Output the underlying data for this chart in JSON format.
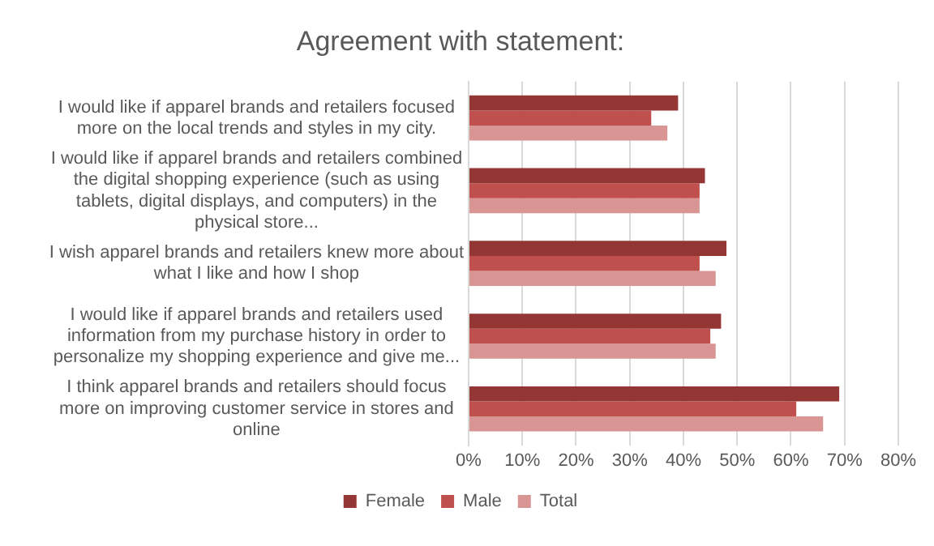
{
  "chart_data": {
    "type": "bar",
    "orientation": "horizontal",
    "title": "Agreement with statement:",
    "categories": [
      "I would like if apparel brands and retailers focused more on the local trends and styles in my city.",
      "I would like if apparel brands and retailers combined the digital shopping experience (such as using tablets, digital displays, and computers) in the physical store...",
      "I wish apparel brands and retailers knew more about what I like and how I shop",
      "I would like if apparel brands and retailers used information from my purchase history in order to personalize my shopping experience and give me...",
      "I think apparel brands and retailers should focus more on improving customer service in stores and online"
    ],
    "series": [
      {
        "name": "Female",
        "color": "#943634",
        "values": [
          39,
          44,
          48,
          47,
          69
        ]
      },
      {
        "name": "Male",
        "color": "#c0504d",
        "values": [
          34,
          43,
          43,
          45,
          61
        ]
      },
      {
        "name": "Total",
        "color": "#d99594",
        "values": [
          37,
          43,
          46,
          46,
          66
        ]
      }
    ],
    "xlim": [
      0,
      80
    ],
    "xticks": [
      {
        "value": 0,
        "label": "0%"
      },
      {
        "value": 10,
        "label": "10%"
      },
      {
        "value": 20,
        "label": "20%"
      },
      {
        "value": 30,
        "label": "30%"
      },
      {
        "value": 40,
        "label": "40%"
      },
      {
        "value": 50,
        "label": "50%"
      },
      {
        "value": 60,
        "label": "60%"
      },
      {
        "value": 70,
        "label": "70%"
      },
      {
        "value": 80,
        "label": "80%"
      }
    ],
    "grid": "x",
    "legend": "bottom"
  }
}
